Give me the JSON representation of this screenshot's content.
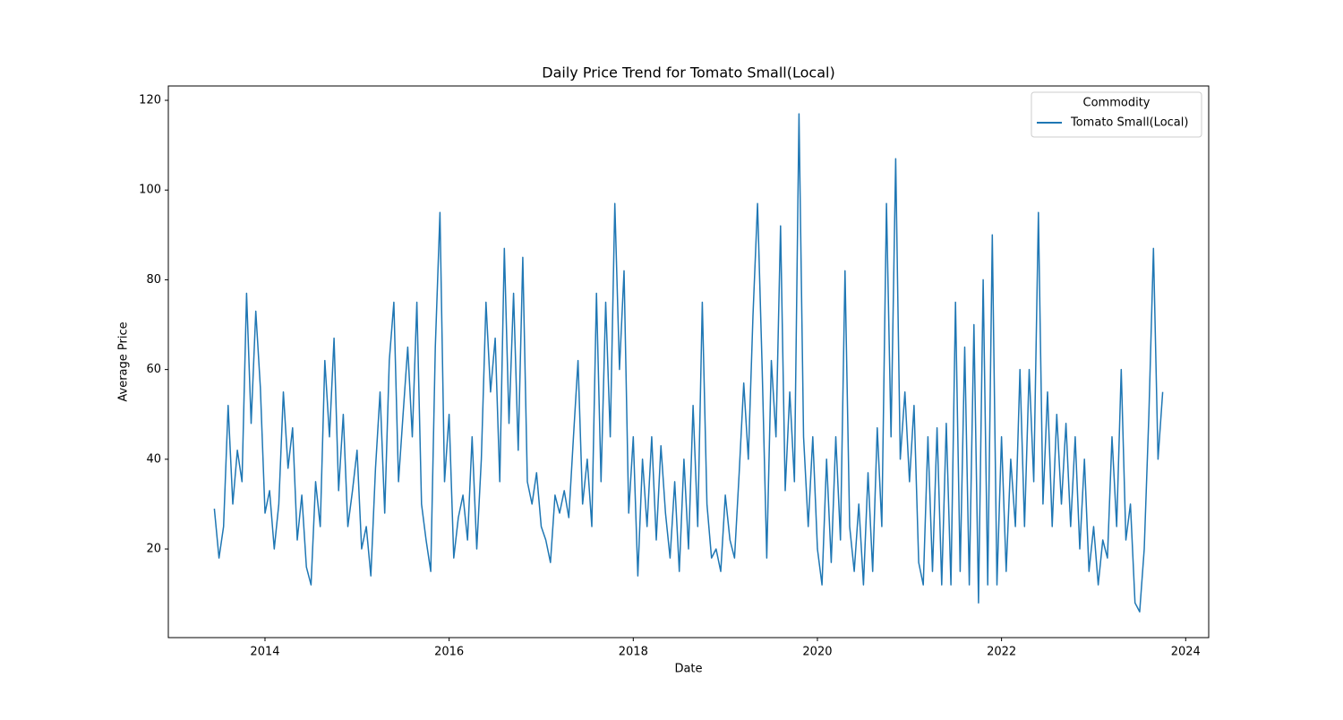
{
  "chart_data": {
    "type": "line",
    "title": "Daily Price Trend for Tomato Small(Local)",
    "x_label": "Date",
    "y_label": "Average Price",
    "legend_title": "Commodity",
    "legend": "upper right",
    "x": [
      2013.45,
      2013.5,
      2013.55,
      2013.6,
      2013.65,
      2013.7,
      2013.75,
      2013.8,
      2013.85,
      2013.9,
      2013.95,
      2014.0,
      2014.05,
      2014.1,
      2014.15,
      2014.2,
      2014.25,
      2014.3,
      2014.35,
      2014.4,
      2014.45,
      2014.5,
      2014.55,
      2014.6,
      2014.65,
      2014.7,
      2014.75,
      2014.8,
      2014.85,
      2014.9,
      2014.95,
      2015.0,
      2015.05,
      2015.1,
      2015.15,
      2015.2,
      2015.25,
      2015.3,
      2015.35,
      2015.4,
      2015.45,
      2015.5,
      2015.55,
      2015.6,
      2015.65,
      2015.7,
      2015.75,
      2015.8,
      2015.85,
      2015.9,
      2015.95,
      2016.0,
      2016.05,
      2016.1,
      2016.15,
      2016.2,
      2016.25,
      2016.3,
      2016.35,
      2016.4,
      2016.45,
      2016.5,
      2016.55,
      2016.6,
      2016.65,
      2016.7,
      2016.75,
      2016.8,
      2016.85,
      2016.9,
      2016.95,
      2017.0,
      2017.05,
      2017.1,
      2017.15,
      2017.2,
      2017.25,
      2017.3,
      2017.35,
      2017.4,
      2017.45,
      2017.5,
      2017.55,
      2017.6,
      2017.65,
      2017.7,
      2017.75,
      2017.8,
      2017.85,
      2017.9,
      2017.95,
      2018.0,
      2018.05,
      2018.1,
      2018.15,
      2018.2,
      2018.25,
      2018.3,
      2018.35,
      2018.4,
      2018.45,
      2018.5,
      2018.55,
      2018.6,
      2018.65,
      2018.7,
      2018.75,
      2018.8,
      2018.85,
      2018.9,
      2018.95,
      2019.0,
      2019.05,
      2019.1,
      2019.15,
      2019.2,
      2019.25,
      2019.3,
      2019.35,
      2019.4,
      2019.45,
      2019.5,
      2019.55,
      2019.6,
      2019.65,
      2019.7,
      2019.75,
      2019.8,
      2019.85,
      2019.9,
      2019.95,
      2020.0,
      2020.05,
      2020.1,
      2020.15,
      2020.2,
      2020.25,
      2020.3,
      2020.35,
      2020.4,
      2020.45,
      2020.5,
      2020.55,
      2020.6,
      2020.65,
      2020.7,
      2020.75,
      2020.8,
      2020.85,
      2020.9,
      2020.95,
      2021.0,
      2021.05,
      2021.1,
      2021.15,
      2021.2,
      2021.25,
      2021.3,
      2021.35,
      2021.4,
      2021.45,
      2021.5,
      2021.55,
      2021.6,
      2021.65,
      2021.7,
      2021.75,
      2021.8,
      2021.85,
      2021.9,
      2021.95,
      2022.0,
      2022.05,
      2022.1,
      2022.15,
      2022.2,
      2022.25,
      2022.3,
      2022.35,
      2022.4,
      2022.45,
      2022.5,
      2022.55,
      2022.6,
      2022.65,
      2022.7,
      2022.75,
      2022.8,
      2022.85,
      2022.9,
      2022.95,
      2023.0,
      2023.05,
      2023.1,
      2023.15,
      2023.2,
      2023.25,
      2023.3,
      2023.35,
      2023.4,
      2023.45,
      2023.5,
      2023.55,
      2023.6,
      2023.65,
      2023.7,
      2023.75
    ],
    "series": [
      {
        "name": "Tomato Small(Local)",
        "color": "#1f77b4",
        "values": [
          29,
          18,
          25,
          52,
          30,
          42,
          35,
          77,
          48,
          73,
          56,
          28,
          33,
          20,
          30,
          55,
          38,
          47,
          22,
          32,
          16,
          12,
          35,
          25,
          62,
          45,
          67,
          33,
          50,
          25,
          33,
          42,
          20,
          25,
          14,
          38,
          55,
          28,
          62,
          75,
          35,
          50,
          65,
          45,
          75,
          30,
          22,
          15,
          65,
          95,
          35,
          50,
          18,
          27,
          32,
          22,
          45,
          20,
          40,
          75,
          55,
          67,
          35,
          87,
          48,
          77,
          42,
          85,
          35,
          30,
          37,
          25,
          22,
          17,
          32,
          28,
          33,
          27,
          45,
          62,
          30,
          40,
          25,
          77,
          35,
          75,
          45,
          97,
          60,
          82,
          28,
          45,
          14,
          40,
          25,
          45,
          22,
          43,
          28,
          18,
          35,
          15,
          40,
          20,
          52,
          25,
          75,
          30,
          18,
          20,
          15,
          32,
          22,
          18,
          37,
          57,
          40,
          72,
          97,
          60,
          18,
          62,
          45,
          92,
          33,
          55,
          35,
          117,
          45,
          25,
          45,
          20,
          12,
          40,
          17,
          45,
          22,
          82,
          25,
          15,
          30,
          12,
          37,
          15,
          47,
          25,
          97,
          45,
          107,
          40,
          55,
          35,
          52,
          17,
          12,
          45,
          15,
          47,
          12,
          48,
          12,
          75,
          15,
          65,
          12,
          70,
          8,
          80,
          12,
          90,
          12,
          45,
          15,
          40,
          25,
          60,
          25,
          60,
          35,
          95,
          30,
          55,
          25,
          50,
          30,
          48,
          25,
          45,
          20,
          40,
          15,
          25,
          12,
          22,
          18,
          45,
          25,
          60,
          22,
          30,
          8,
          6,
          20,
          50,
          87,
          40,
          55
        ]
      }
    ],
    "xlim": [
      2012.95,
      2024.25
    ],
    "ylim": [
      0.25,
      123.2
    ],
    "xticks": [
      2014,
      2016,
      2018,
      2020,
      2022,
      2024
    ],
    "yticks": [
      20,
      40,
      60,
      80,
      100,
      120
    ]
  }
}
